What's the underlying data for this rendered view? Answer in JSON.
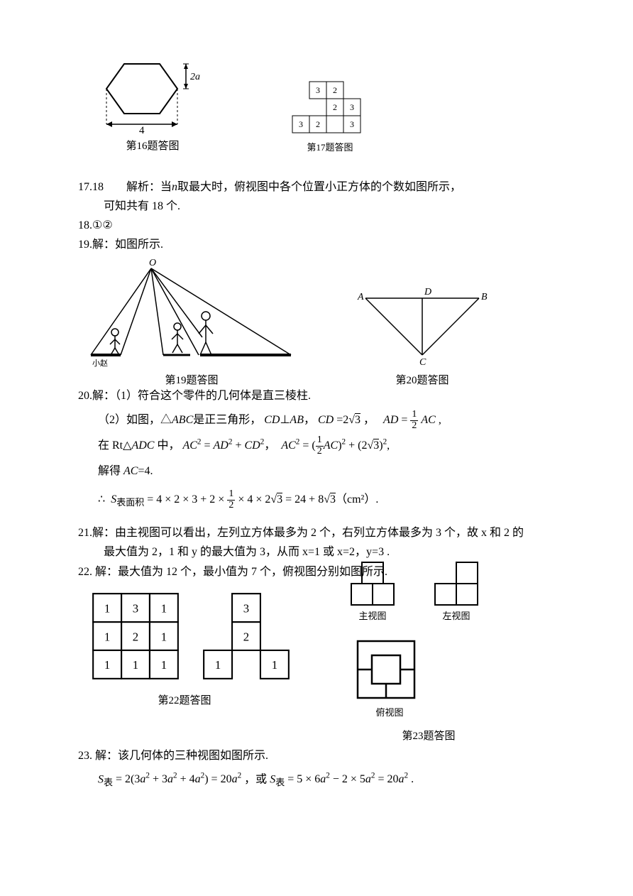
{
  "fig16": {
    "caption": "第16题答图",
    "side_label": "2a",
    "width_label": "4",
    "stroke": "#000000"
  },
  "fig17": {
    "caption": "第17题答图",
    "cells": [
      {
        "r": 0,
        "c": 1,
        "v": "3"
      },
      {
        "r": 0,
        "c": 2,
        "v": "2"
      },
      {
        "r": 1,
        "c": 2,
        "v": "2"
      },
      {
        "r": 1,
        "c": 3,
        "v": "3"
      },
      {
        "r": 2,
        "c": 0,
        "v": "3"
      },
      {
        "r": 2,
        "c": 1,
        "v": "2"
      },
      {
        "r": 2,
        "c": 3,
        "v": "3"
      }
    ],
    "cell_size": 24,
    "font_size": 12
  },
  "q17": {
    "num": "17.18",
    "analysis_label": "解析：当",
    "var": "n",
    "analysis_rest": "取最大时，俯视图中各个位置小正方体的个数如图所示，",
    "line2": "可知共有 18 个."
  },
  "q18": {
    "text": "18.①②"
  },
  "q19": {
    "text": "19.解：如图所示.",
    "caption": "第19题答图",
    "label_xiaozhao": "小赵",
    "vertex": "O"
  },
  "q20": {
    "caption": "第20题答图",
    "labels": {
      "A": "A",
      "B": "B",
      "C": "C",
      "D": "D"
    },
    "line1": "20.解：（1）符合这个零件的几何体是直三棱柱.",
    "line2_a": "（2）如图，△",
    "line2_abc": "ABC",
    "line2_b": "是正三角形，",
    "line2_cd": "CD",
    "line2_perp": "⊥",
    "line2_ab": "AB",
    "line2_c": "，",
    "line2_cd2": "CD",
    "line2_eq": "=2",
    "line2_sqrt3": "√3",
    "line2_comma": " ，",
    "line2_ad": "AD",
    "line2_eqfrac": "=",
    "line2_half_num": "1",
    "line2_half_den": "2",
    "line2_ac": "AC",
    "line2_end": " ,",
    "line3_a": "在 Rt△",
    "line3_adc": "ADC",
    "line3_b": " 中，",
    "line3_ac2": "AC",
    "line3_eq": "=",
    "line3_ad2": "AD",
    "line3_plus": "+",
    "line3_cd2": "CD",
    "line3_comma": "，",
    "line4": "解得 AC=4.",
    "surface_label": "S",
    "surface_sub": "表面积",
    "surface_expr": "= 4 × 2 × 3 + 2 × ",
    "surface_half_num": "1",
    "surface_half_den": "2",
    "surface_expr2": " × 4 × 2",
    "surface_sqrt3": "√3",
    "surface_expr3": " = 24 + 8",
    "surface_sqrt3b": "√3",
    "surface_unit": "（cm²）."
  },
  "q21": {
    "line1": "21.解：由主视图可以看出，左列立方体最多为 2 个，右列立方体最多为 3 个，故 x 和 2 的",
    "line2": "最大值为 2，1 和 y 的最大值为 3，从而 x=1 或 x=2，y=3 ."
  },
  "q22": {
    "line1": "22. 解：最大值为 12 个，最小值为 7 个，俯视图分别如图所示.",
    "grid3x3": [
      [
        "1",
        "3",
        "1"
      ],
      [
        "1",
        "2",
        "1"
      ],
      [
        "1",
        "1",
        "1"
      ]
    ],
    "gridL": [
      [
        null,
        "3",
        null
      ],
      [
        null,
        "2",
        null
      ],
      [
        "1",
        null,
        "1"
      ]
    ],
    "caption": "第22题答图",
    "cell_size": 38
  },
  "q23": {
    "main_label": "主视图",
    "left_label": "左视图",
    "top_label": "俯视图",
    "caption": "第23题答图",
    "line1": "23. 解：该几何体的三种视图如图所示.",
    "expr_a": "S",
    "expr_sub": "表",
    "expr_eq": " = 2(3a² + 3a² + 4a²) = 20a² ，或 S",
    "expr_sub2": "表",
    "expr_eq2": " = 5 × 6a² − 2 × 5a² = 20a² ."
  }
}
